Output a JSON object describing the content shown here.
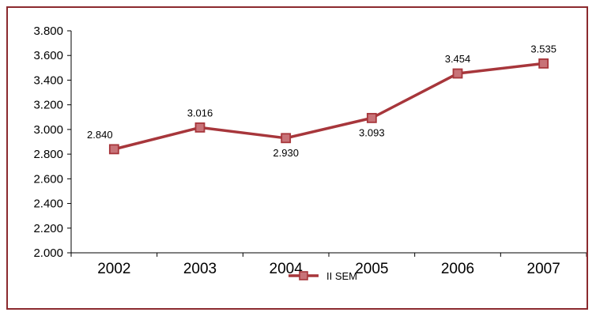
{
  "chart_data": {
    "type": "line",
    "title": "",
    "xlabel": "",
    "ylabel": "",
    "categories": [
      "2002",
      "2003",
      "2004",
      "2005",
      "2006",
      "2007"
    ],
    "series": [
      {
        "name": "II SEM",
        "values": [
          2840,
          3016,
          2930,
          3093,
          3454,
          3535
        ],
        "labels": [
          "2.840",
          "3.016",
          "2.930",
          "3.093",
          "3.454",
          "3.535"
        ],
        "color": "#a7363b",
        "marker_fill": "#c87378"
      }
    ],
    "ylim": [
      2000,
      3800
    ],
    "yticks": [
      2000,
      2200,
      2400,
      2600,
      2800,
      3000,
      3200,
      3400,
      3600,
      3800
    ],
    "ytick_labels": [
      "2.000",
      "2.200",
      "2.400",
      "2.600",
      "2.800",
      "3.000",
      "3.200",
      "3.400",
      "3.600",
      "3.800"
    ],
    "grid": false,
    "legend_position": "bottom"
  },
  "colors": {
    "frame": "#8b2a2e",
    "axis": "#000000"
  }
}
